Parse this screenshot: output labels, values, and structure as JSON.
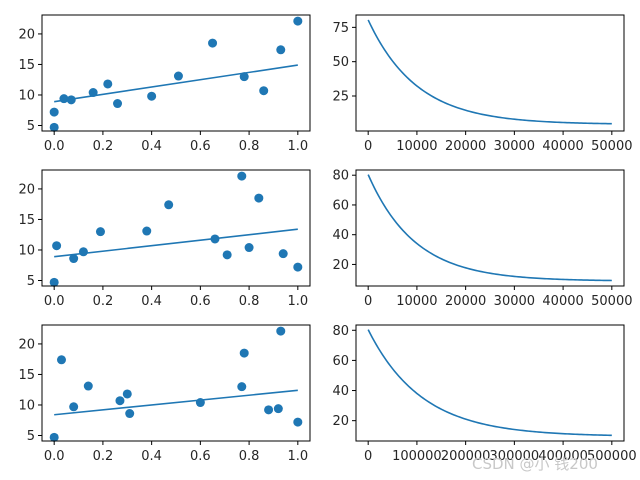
{
  "colors": {
    "series": "#1f77b4",
    "axis": "#000000",
    "text": "#262626",
    "watermark": "#c8c8c8"
  },
  "watermark": "CSDN @小 钱200",
  "chart_data": [
    {
      "type": "scatter",
      "xlim": [
        -0.05,
        1.05
      ],
      "ylim": [
        4.1,
        23.1
      ],
      "xticks": [
        0.0,
        0.2,
        0.4,
        0.6,
        0.8,
        1.0
      ],
      "yticks": [
        5,
        10,
        15,
        20
      ],
      "points": {
        "x": [
          0.0,
          0.0,
          0.04,
          0.07,
          0.16,
          0.22,
          0.26,
          0.4,
          0.51,
          0.65,
          0.78,
          0.86,
          0.93,
          1.0
        ],
        "y": [
          4.7,
          7.2,
          9.4,
          9.2,
          10.4,
          11.8,
          8.6,
          9.8,
          13.1,
          18.5,
          13.0,
          10.7,
          17.4,
          22.1
        ]
      },
      "fit_line": {
        "x": [
          0.0,
          1.0
        ],
        "y": [
          8.9,
          14.9
        ]
      }
    },
    {
      "type": "line",
      "xlim": [
        -2500,
        52500
      ],
      "ylim": [
        -0.5,
        84
      ],
      "xticks": [
        0,
        10000,
        20000,
        30000,
        40000,
        50000
      ],
      "yticks": [
        25,
        50,
        75
      ],
      "curve": {
        "start": 80.4,
        "asymptote": 4.3,
        "scale": 10000
      }
    },
    {
      "type": "scatter",
      "xlim": [
        -0.05,
        1.05
      ],
      "ylim": [
        4.1,
        23.1
      ],
      "xticks": [
        0.0,
        0.2,
        0.4,
        0.6,
        0.8,
        1.0
      ],
      "yticks": [
        5,
        10,
        15,
        20
      ],
      "points": {
        "x": [
          0.0,
          0.01,
          0.08,
          0.12,
          0.19,
          0.38,
          0.47,
          0.66,
          0.71,
          0.77,
          0.8,
          0.84,
          0.94,
          1.0
        ],
        "y": [
          4.7,
          10.7,
          8.6,
          9.7,
          13.0,
          13.1,
          17.4,
          11.8,
          9.2,
          22.1,
          10.4,
          18.5,
          9.4,
          7.2
        ]
      },
      "fit_line": {
        "x": [
          0.0,
          1.0
        ],
        "y": [
          8.9,
          13.4
        ]
      }
    },
    {
      "type": "line",
      "xlim": [
        -2500,
        52500
      ],
      "ylim": [
        5.5,
        83.5
      ],
      "xticks": [
        0,
        10000,
        20000,
        30000,
        40000,
        50000
      ],
      "yticks": [
        20,
        40,
        60,
        80
      ],
      "curve": {
        "start": 80.4,
        "asymptote": 8.8,
        "scale": 9600
      }
    },
    {
      "type": "scatter",
      "xlim": [
        -0.05,
        1.05
      ],
      "ylim": [
        4.1,
        23.1
      ],
      "xticks": [
        0.0,
        0.2,
        0.4,
        0.6,
        0.8,
        1.0
      ],
      "yticks": [
        5,
        10,
        15,
        20
      ],
      "points": {
        "x": [
          0.0,
          0.03,
          0.08,
          0.14,
          0.27,
          0.3,
          0.31,
          0.6,
          0.77,
          0.78,
          0.88,
          0.92,
          0.93,
          1.0
        ],
        "y": [
          4.7,
          17.4,
          9.7,
          13.1,
          10.7,
          11.8,
          8.6,
          10.4,
          13.0,
          18.5,
          9.2,
          9.4,
          22.1,
          7.2
        ]
      },
      "fit_line": {
        "x": [
          0.0,
          1.0
        ],
        "y": [
          8.4,
          12.4
        ]
      }
    },
    {
      "type": "line",
      "xlim": [
        -25000,
        525000
      ],
      "ylim": [
        6.5,
        83.5
      ],
      "xticks": [
        0,
        100000,
        200000,
        300000,
        400000,
        500000
      ],
      "yticks": [
        20,
        40,
        60,
        80
      ],
      "curve": {
        "start": 80.4,
        "asymptote": 9.5,
        "scale": 110000
      }
    }
  ]
}
